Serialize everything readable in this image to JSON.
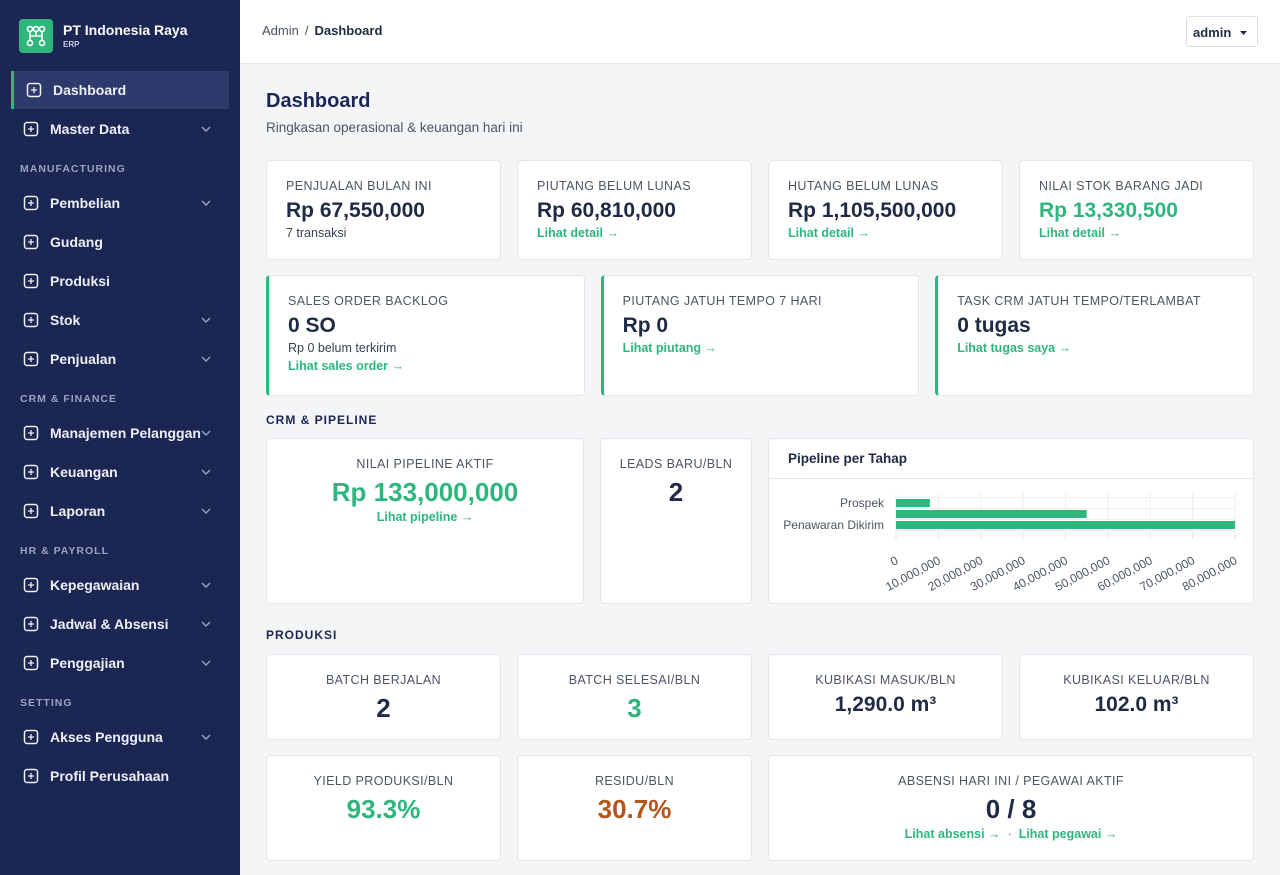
{
  "sidebar": {
    "brand": {
      "name": "PT Indonesia Raya",
      "tagline": "ERP"
    },
    "menu": [
      {
        "items": [
          {
            "label": "Dashboard",
            "active": true
          },
          {
            "label": "Master Data",
            "expandable": true
          }
        ]
      },
      {
        "title": "MANUFACTURING",
        "items": [
          {
            "label": "Pembelian",
            "expandable": true
          },
          {
            "label": "Gudang"
          },
          {
            "label": "Produksi"
          },
          {
            "label": "Stok",
            "expandable": true
          },
          {
            "label": "Penjualan",
            "expandable": true
          }
        ]
      },
      {
        "title": "CRM & FINANCE",
        "items": [
          {
            "label": "Manajemen Pelanggan",
            "expandable": true
          },
          {
            "label": "Keuangan",
            "expandable": true
          },
          {
            "label": "Laporan",
            "expandable": true
          }
        ]
      },
      {
        "title": "HR & PAYROLL",
        "items": [
          {
            "label": "Kepegawaian",
            "expandable": true
          },
          {
            "label": "Jadwal & Absensi",
            "expandable": true
          },
          {
            "label": "Penggajian",
            "expandable": true
          }
        ]
      },
      {
        "title": "SETTING",
        "items": [
          {
            "label": "Akses Pengguna",
            "expandable": true
          },
          {
            "label": "Profil Perusahaan"
          }
        ]
      }
    ]
  },
  "header": {
    "breadcrumb": [
      "Admin",
      "Dashboard"
    ],
    "separator": "/",
    "user": "admin"
  },
  "page": {
    "title": "Dashboard",
    "subtitle": "Ringkasan operasional & keuangan hari ini"
  },
  "summary_cards": [
    {
      "label": "PENJUALAN BULAN INI",
      "value": "Rp 67,550,000",
      "note": "7 transaksi"
    },
    {
      "label": "PIUTANG BELUM LUNAS",
      "value": "Rp 60,810,000",
      "link": "Lihat detail →"
    },
    {
      "label": "HUTANG BELUM LUNAS",
      "value": "Rp 1,105,500,000",
      "link": "Lihat detail →"
    },
    {
      "label": "NILAI STOK BARANG JADI",
      "value": "Rp 13,330,500",
      "link": "Lihat detail →",
      "color": "#2eb67d"
    }
  ],
  "alert_cards": [
    {
      "label": "SALES ORDER BACKLOG",
      "value": "0 SO",
      "note": "Rp 0 belum terkirim",
      "link": "Lihat sales order →"
    },
    {
      "label": "PIUTANG JATUH TEMPO 7 HARI",
      "value": "Rp 0",
      "link": "Lihat piutang →"
    },
    {
      "label": "TASK CRM JATUH TEMPO/TERLAMBAT",
      "value": "0 tugas",
      "link": "Lihat tugas saya →"
    }
  ],
  "crm": {
    "title": "CRM & PIPELINE",
    "pipeline": {
      "label": "NILAI PIPELINE AKTIF",
      "value": "Rp 133,000,000",
      "link": "Lihat pipeline →",
      "color": "#2eb67d"
    },
    "leads": {
      "label": "LEADS BARU/BLN",
      "value": "2"
    }
  },
  "chart_data": {
    "type": "bar",
    "orientation": "horizontal",
    "title": "Pipeline per Tahap",
    "categories": [
      "Prospek",
      null,
      "Penawaran Dikirim"
    ],
    "values": [
      8000000,
      45000000,
      80000000
    ],
    "color": "#2eb67d",
    "xlim": [
      0,
      80000000
    ],
    "xticks": [
      0,
      {
        "value": 10000000,
        "label": "10,000,000"
      },
      {
        "value": 20000000,
        "label": "20,000,000"
      },
      {
        "value": 30000000,
        "label": "30,000,000"
      },
      {
        "value": 40000000,
        "label": "40,000,000"
      },
      {
        "value": 50000000,
        "label": "50,000,000"
      },
      {
        "value": 60000000,
        "label": "60,000,000"
      },
      {
        "value": 70000000,
        "label": "70,000,000"
      },
      {
        "value": 80000000,
        "label": "80,000,000"
      }
    ],
    "grid": true
  },
  "production": {
    "title": "PRODUKSI",
    "cards": [
      {
        "label": "BATCH BERJALAN",
        "value": "2"
      },
      {
        "label": "BATCH SELESAI/BLN",
        "value": "3",
        "color": "#2eb67d"
      },
      {
        "label": "KUBIKASI MASUK/BLN",
        "value": "1,290.0 m³"
      },
      {
        "label": "KUBIKASI KELUAR/BLN",
        "value": "102.0 m³"
      },
      {
        "label": "YIELD PRODUKSI/BLN",
        "value": "93.3%",
        "color": "#2eb67d"
      },
      {
        "label": "RESIDU/BLN",
        "value": "30.7%",
        "color": "#b4561c"
      },
      {
        "label": "ABSENSI HARI INI / PEGAWAI AKTIF",
        "value": "0 / 8",
        "links": [
          "Lihat absensi →",
          "Lihat pegawai →"
        ],
        "links_separator": "·"
      }
    ]
  }
}
